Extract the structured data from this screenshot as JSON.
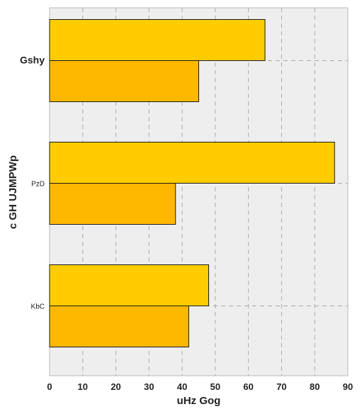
{
  "chart_data": {
    "type": "bar",
    "orientation": "horizontal",
    "categories": [
      "Gshy",
      "PzD",
      "KbC"
    ],
    "series": [
      {
        "values": [
          65,
          86,
          48
        ],
        "color": "#FFCC00"
      },
      {
        "values": [
          45,
          38,
          42
        ],
        "color": "#FFB800"
      }
    ],
    "xlabel": "uHz Gog",
    "ylabel": "c GH UJMPWp",
    "xlim": [
      0,
      90
    ],
    "xticks": [
      0,
      10,
      20,
      30,
      40,
      50,
      60,
      70,
      80,
      90
    ],
    "grid": true,
    "plot_background": "#EEEEEE"
  }
}
